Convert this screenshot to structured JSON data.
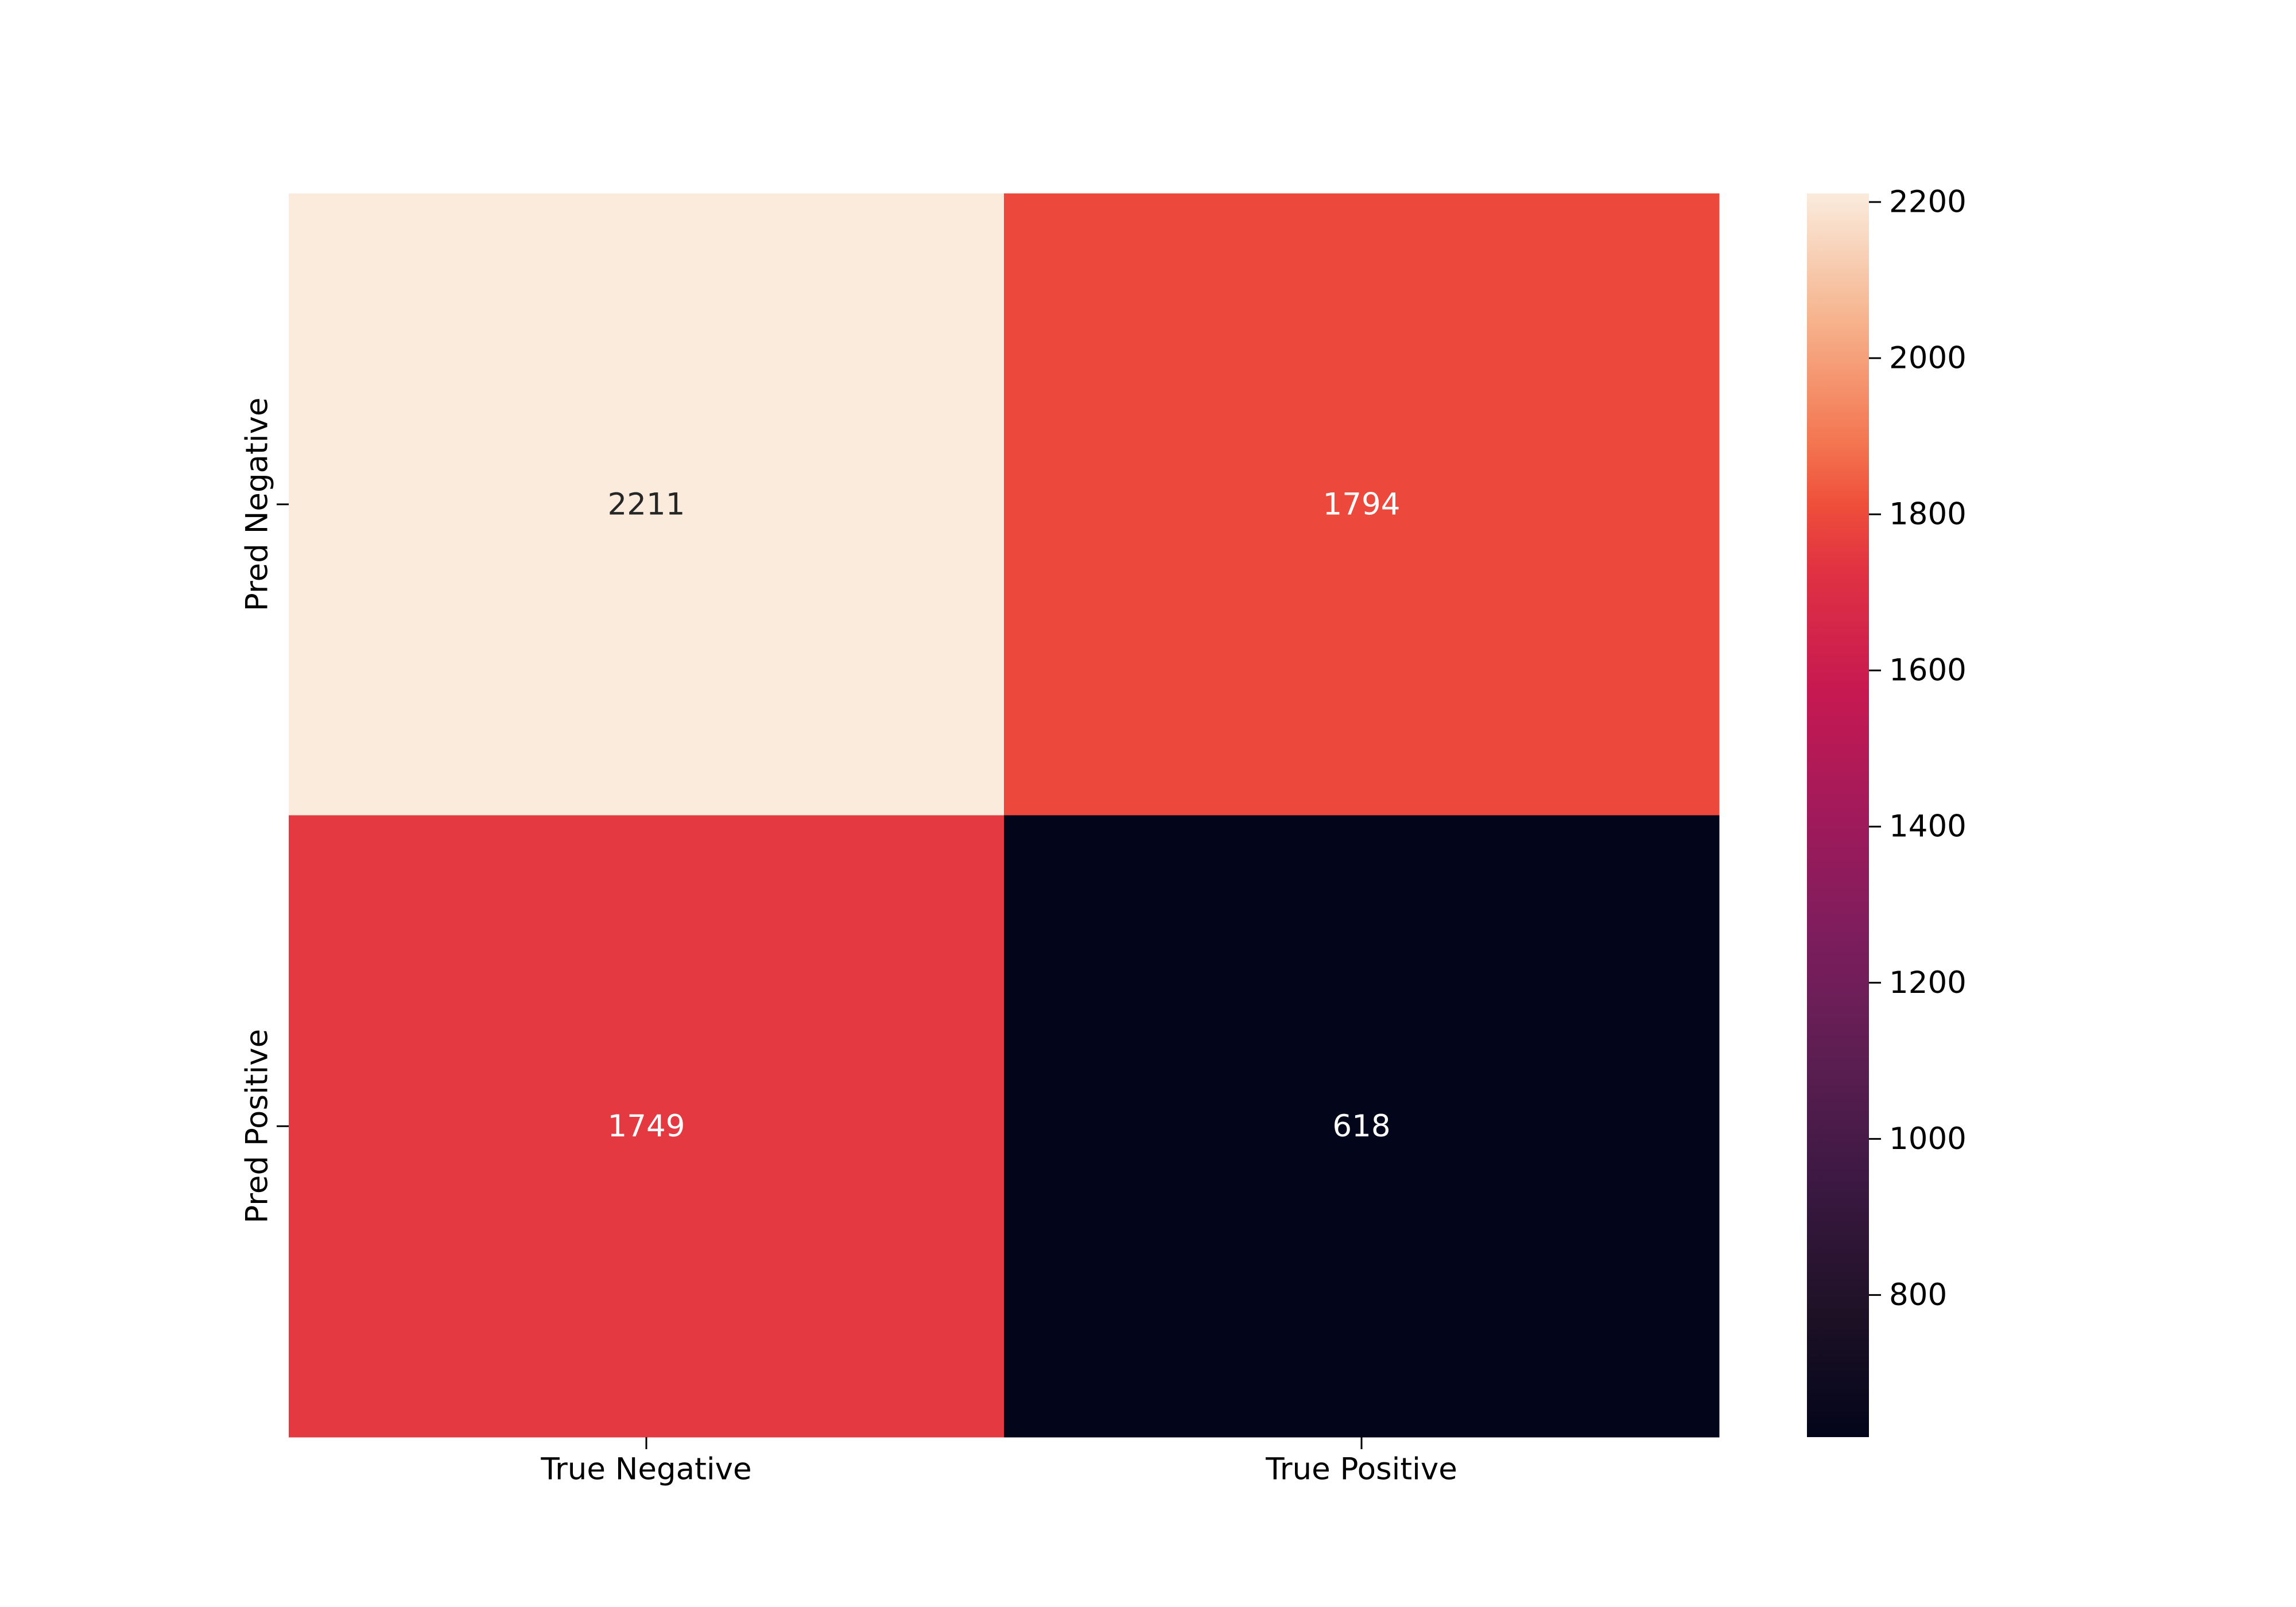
{
  "chart_data": {
    "type": "heatmap",
    "title": "",
    "xlabel": "",
    "ylabel": "",
    "x_categories": [
      "True Negative",
      "True Positive"
    ],
    "y_categories": [
      "Pred Negative",
      "Pred Positive"
    ],
    "values": [
      [
        2211,
        1794
      ],
      [
        1749,
        618
      ]
    ],
    "annotations": [
      [
        "2211",
        "1794"
      ],
      [
        "1749",
        "618"
      ]
    ],
    "colorbar": {
      "min": 618,
      "max": 2211,
      "ticks": [
        "800",
        "1000",
        "1200",
        "1400",
        "1600",
        "1800",
        "2000",
        "2200"
      ],
      "colormap": "rocket",
      "colormap_stops": [
        {
          "value": 0.0,
          "color": "#03051A"
        },
        {
          "value": 0.1,
          "color": "#1E1126"
        },
        {
          "value": 0.2,
          "color": "#3A1841"
        },
        {
          "value": 0.3,
          "color": "#5B1E51"
        },
        {
          "value": 0.4,
          "color": "#7C1D5D"
        },
        {
          "value": 0.5,
          "color": "#A11A5B"
        },
        {
          "value": 0.6,
          "color": "#C71951"
        },
        {
          "value": 0.7,
          "color": "#E13342"
        },
        {
          "value": 0.75,
          "color": "#EF4F3A"
        },
        {
          "value": 0.8,
          "color": "#F37651"
        },
        {
          "value": 0.9,
          "color": "#F6B48E"
        },
        {
          "value": 1.0,
          "color": "#FAEBDD"
        }
      ]
    },
    "annotation_colors": {
      "on_light": "#262626",
      "on_dark": "#FFFFFF"
    },
    "grid": false,
    "legend": "colorbar-right"
  }
}
